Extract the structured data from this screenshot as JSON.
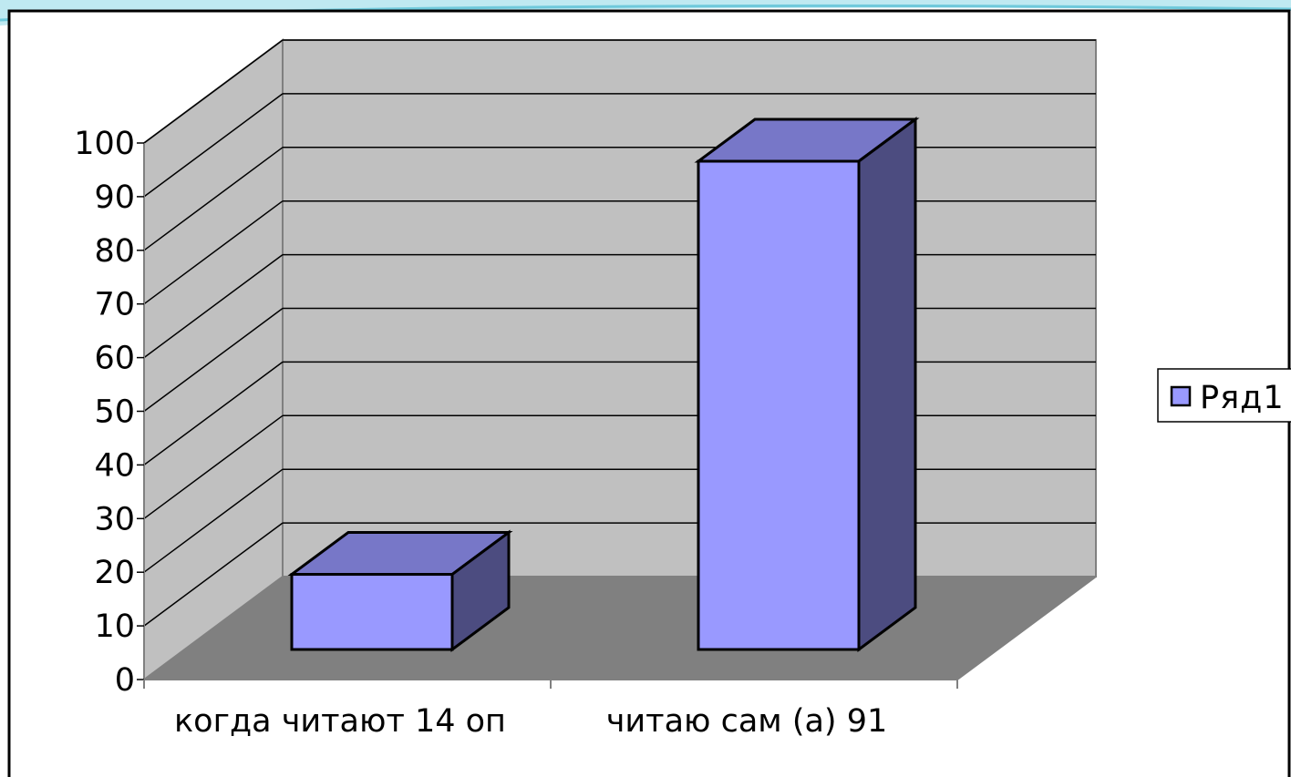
{
  "chart_data": {
    "type": "bar",
    "style": "3d-column",
    "categories": [
      "когда читают 14 оп",
      "читаю сам (а) 91"
    ],
    "series": [
      {
        "name": "Ряд1",
        "values": [
          14,
          91
        ]
      }
    ],
    "ylim": [
      0,
      100
    ],
    "yticks": [
      0,
      10,
      20,
      30,
      40,
      50,
      60,
      70,
      80,
      90,
      100
    ],
    "grid": true,
    "legend": "right",
    "colors": {
      "bar_front": "#9999ff",
      "bar_top": "#7777c8",
      "bar_side": "#4c4c80",
      "back_wall": "#c0c0c0",
      "side_wall": "#c0c0c0",
      "floor": "#808080",
      "decor_swoosh": "#7fd3e3"
    }
  }
}
